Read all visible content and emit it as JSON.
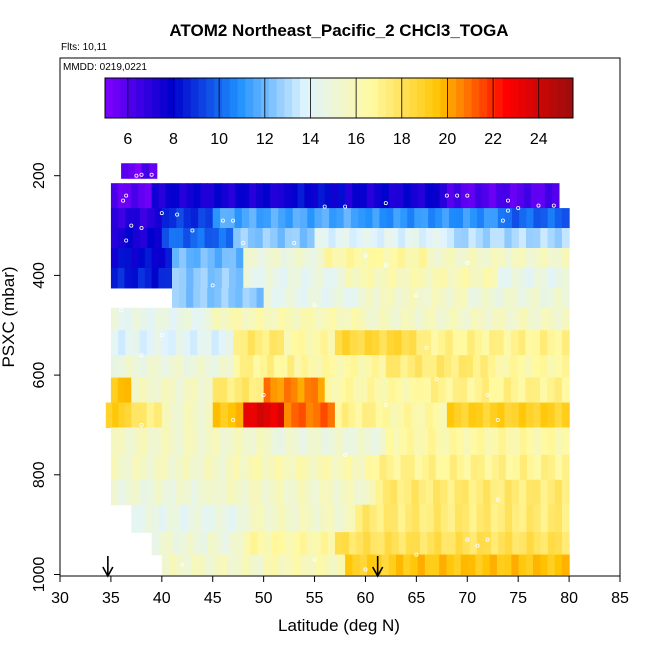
{
  "chart_data": {
    "type": "heatmap",
    "title": "ATOM2 Northeast_Pacific_2 CHCl3_TOGA",
    "flights_text": "Flts: 10,11",
    "mmdd_text": "MMDD: 0219,0221",
    "xlabel": "Latitude (deg N)",
    "ylabel": "PSXC (mbar)",
    "xlim": [
      30,
      85
    ],
    "ylim": [
      1000,
      0
    ],
    "x_ticks": [
      "30",
      "35",
      "40",
      "45",
      "50",
      "55",
      "60",
      "65",
      "70",
      "75",
      "80",
      "85"
    ],
    "y_ticks": [
      "200",
      "400",
      "600",
      "800",
      "1000"
    ],
    "colorbar": {
      "range": [
        5,
        25.5
      ],
      "ticks": [
        "6",
        "8",
        "10",
        "12",
        "14",
        "16",
        "18",
        "20",
        "22",
        "24"
      ],
      "colors": [
        "#8000ff",
        "#0000cc",
        "#1e90ff",
        "#e0f4ff",
        "#fff9a0",
        "#ffc400",
        "#ff0000",
        "#9b0d0d"
      ]
    },
    "arrows_at_latitude": [
      34.7,
      61.2
    ],
    "layers": [
      {
        "p_top": 175,
        "p_bot": 205,
        "segments": [
          [
            36,
            38,
            5.5
          ],
          [
            38,
            39.5,
            6.0
          ]
        ]
      },
      {
        "p_top": 215,
        "p_bot": 265,
        "segments": [
          [
            35,
            39,
            5.8
          ],
          [
            39,
            52,
            7.5
          ],
          [
            52,
            58,
            8.0
          ],
          [
            58,
            68,
            7.5
          ],
          [
            68,
            79,
            6.0
          ]
        ]
      },
      {
        "p_top": 265,
        "p_bot": 305,
        "segments": [
          [
            35,
            40,
            7.0
          ],
          [
            40,
            45,
            9.0
          ],
          [
            45,
            60,
            11.5
          ],
          [
            60,
            73,
            11.0
          ],
          [
            73,
            80,
            10.0
          ]
        ]
      },
      {
        "p_top": 305,
        "p_bot": 345,
        "segments": [
          [
            35,
            40,
            7.5
          ],
          [
            40,
            47,
            10.0
          ],
          [
            47,
            55,
            12.5
          ],
          [
            55,
            68,
            14.0
          ],
          [
            68,
            80,
            13.0
          ]
        ]
      },
      {
        "p_top": 345,
        "p_bot": 385,
        "segments": [
          [
            35,
            41,
            8.0
          ],
          [
            41,
            48,
            12.0
          ],
          [
            48,
            56,
            15.0
          ],
          [
            56,
            66,
            16.5
          ],
          [
            66,
            80,
            15.5
          ]
        ]
      },
      {
        "p_top": 385,
        "p_bot": 425,
        "segments": [
          [
            35,
            41,
            8.5
          ],
          [
            41,
            48,
            12.5
          ],
          [
            48,
            58,
            14.5
          ],
          [
            58,
            73,
            16.0
          ],
          [
            73,
            80,
            14.5
          ]
        ]
      },
      {
        "p_top": 425,
        "p_bot": 465,
        "segments": [
          [
            41,
            50,
            12.5
          ],
          [
            50,
            60,
            14.5
          ],
          [
            60,
            70,
            15.5
          ],
          [
            70,
            80,
            15.0
          ]
        ]
      },
      {
        "p_top": 465,
        "p_bot": 510,
        "segments": [
          [
            35,
            45,
            14.5
          ],
          [
            45,
            60,
            16.0
          ],
          [
            60,
            80,
            15.5
          ]
        ]
      },
      {
        "p_top": 510,
        "p_bot": 560,
        "segments": [
          [
            35,
            47,
            14.0
          ],
          [
            47,
            52,
            17.5
          ],
          [
            52,
            57,
            16.5
          ],
          [
            57,
            65,
            18.5
          ],
          [
            65,
            80,
            17.0
          ]
        ]
      },
      {
        "p_top": 560,
        "p_bot": 605,
        "segments": [
          [
            35,
            47,
            15.0
          ],
          [
            47,
            53,
            17.0
          ],
          [
            53,
            62,
            16.5
          ],
          [
            62,
            72,
            17.5
          ],
          [
            72,
            80,
            16.5
          ]
        ]
      },
      {
        "p_top": 605,
        "p_bot": 655,
        "segments": [
          [
            35,
            37,
            19.5
          ],
          [
            37,
            45,
            15.5
          ],
          [
            45,
            50,
            17.5
          ],
          [
            50,
            56,
            20.5
          ],
          [
            56,
            65,
            16.5
          ],
          [
            65,
            80,
            17.0
          ]
        ]
      },
      {
        "p_top": 655,
        "p_bot": 705,
        "segments": [
          [
            34.5,
            37,
            19.0
          ],
          [
            37,
            40,
            17.5
          ],
          [
            40,
            45,
            15.5
          ],
          [
            45,
            48,
            19.5
          ],
          [
            48,
            52,
            23.5
          ],
          [
            52,
            57,
            21.0
          ],
          [
            57,
            61,
            17.0
          ],
          [
            61,
            68,
            16.5
          ],
          [
            68,
            80,
            19.0
          ]
        ]
      },
      {
        "p_top": 705,
        "p_bot": 760,
        "segments": [
          [
            35,
            50,
            15.5
          ],
          [
            50,
            62,
            15.0
          ],
          [
            62,
            80,
            16.5
          ]
        ]
      },
      {
        "p_top": 760,
        "p_bot": 810,
        "segments": [
          [
            35,
            47,
            15.5
          ],
          [
            47,
            60,
            16.0
          ],
          [
            60,
            80,
            17.0
          ]
        ]
      },
      {
        "p_top": 810,
        "p_bot": 860,
        "segments": [
          [
            35,
            45,
            15.0
          ],
          [
            45,
            61,
            15.5
          ],
          [
            61,
            80,
            17.5
          ]
        ]
      },
      {
        "p_top": 860,
        "p_bot": 915,
        "segments": [
          [
            37,
            48,
            14.5
          ],
          [
            48,
            59,
            15.5
          ],
          [
            59,
            80,
            17.5
          ]
        ]
      },
      {
        "p_top": 915,
        "p_bot": 960,
        "segments": [
          [
            39,
            48,
            15.0
          ],
          [
            48,
            57,
            16.5
          ],
          [
            57,
            80,
            18.0
          ]
        ]
      },
      {
        "p_top": 960,
        "p_bot": 1000,
        "segments": [
          [
            40,
            50,
            15.5
          ],
          [
            50,
            58,
            16.0
          ],
          [
            58,
            63,
            19.0
          ],
          [
            63,
            80,
            19.5
          ]
        ]
      }
    ],
    "sample_points": [
      [
        36.5,
        240
      ],
      [
        36.2,
        250
      ],
      [
        37.5,
        200
      ],
      [
        38,
        198
      ],
      [
        39,
        198
      ],
      [
        40,
        275
      ],
      [
        41.5,
        278
      ],
      [
        46,
        290
      ],
      [
        47,
        290
      ],
      [
        56,
        262
      ],
      [
        58,
        262
      ],
      [
        62,
        255
      ],
      [
        68,
        240
      ],
      [
        69,
        240
      ],
      [
        70,
        240
      ],
      [
        74,
        250
      ],
      [
        74,
        270
      ],
      [
        73.5,
        290
      ],
      [
        75,
        265
      ],
      [
        77,
        260
      ],
      [
        78.5,
        260
      ],
      [
        37,
        300
      ],
      [
        36.5,
        330
      ],
      [
        38,
        305
      ],
      [
        43,
        310
      ],
      [
        48,
        335
      ],
      [
        53,
        335
      ],
      [
        60,
        360
      ],
      [
        62,
        380
      ],
      [
        70,
        375
      ],
      [
        36,
        470
      ],
      [
        40,
        520
      ],
      [
        45,
        420
      ],
      [
        55,
        460
      ],
      [
        65,
        440
      ],
      [
        66,
        545
      ],
      [
        67,
        608
      ],
      [
        72,
        640
      ],
      [
        38,
        700
      ],
      [
        47,
        690
      ],
      [
        62,
        660
      ],
      [
        73,
        690
      ],
      [
        73,
        850
      ],
      [
        70,
        930
      ],
      [
        71,
        942
      ],
      [
        72,
        930
      ],
      [
        65,
        960
      ],
      [
        55,
        970
      ],
      [
        42,
        980
      ],
      [
        60,
        990
      ],
      [
        38,
        560
      ],
      [
        50,
        640
      ],
      [
        58,
        760
      ]
    ]
  }
}
